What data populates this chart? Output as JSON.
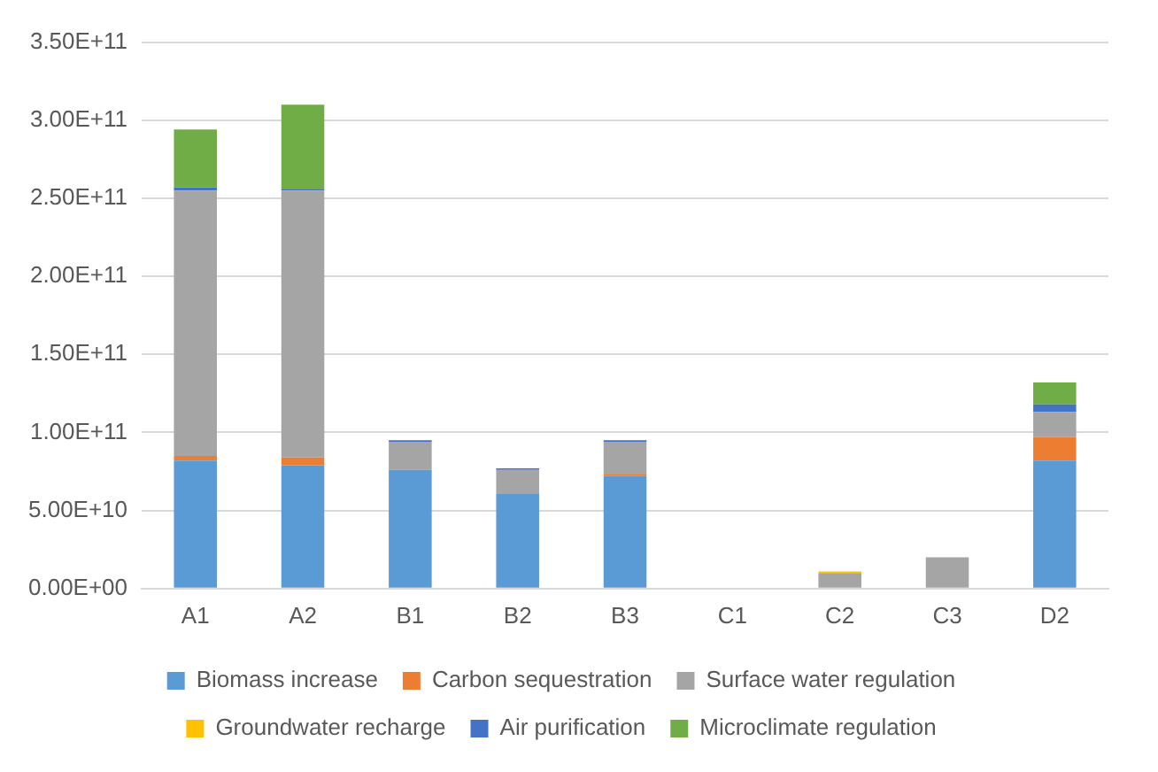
{
  "chart_data": {
    "type": "bar",
    "stacked": true,
    "categories": [
      "A1",
      "A2",
      "B1",
      "B2",
      "B3",
      "C1",
      "C2",
      "C3",
      "D2"
    ],
    "series": [
      {
        "name": "Biomass increase",
        "color": "#5b9bd5",
        "values": [
          82000000000,
          79000000000,
          76000000000,
          61000000000,
          72000000000,
          0,
          0,
          0,
          82000000000
        ]
      },
      {
        "name": "Carbon sequestration",
        "color": "#ed7d31",
        "values": [
          3000000000,
          5000000000,
          0,
          0,
          1000000000,
          0,
          0,
          0,
          15000000000
        ]
      },
      {
        "name": "Surface water regulation",
        "color": "#a5a5a5",
        "values": [
          170000000000,
          171000000000,
          18000000000,
          15000000000,
          21000000000,
          0,
          10000000000,
          20000000000,
          16000000000
        ]
      },
      {
        "name": "Groundwater recharge",
        "color": "#ffc000",
        "values": [
          0,
          0,
          0,
          0,
          0,
          0,
          1000000000,
          0,
          0
        ]
      },
      {
        "name": "Air purification",
        "color": "#4472c4",
        "values": [
          2000000000,
          1000000000,
          1000000000,
          1000000000,
          1000000000,
          0,
          0,
          0,
          5000000000
        ]
      },
      {
        "name": "Microclimate regulation",
        "color": "#70ad47",
        "values": [
          37000000000,
          54000000000,
          0,
          0,
          0,
          0,
          0,
          0,
          14000000000
        ]
      }
    ],
    "ylim": [
      0,
      350000000000
    ],
    "yticks": [
      {
        "value": 0,
        "label": "0.00E+00"
      },
      {
        "value": 50000000000,
        "label": "5.00E+10"
      },
      {
        "value": 100000000000,
        "label": "1.00E+11"
      },
      {
        "value": 150000000000,
        "label": "1.50E+11"
      },
      {
        "value": 200000000000,
        "label": "2.00E+11"
      },
      {
        "value": 250000000000,
        "label": "2.50E+11"
      },
      {
        "value": 300000000000,
        "label": "3.00E+11"
      },
      {
        "value": 350000000000,
        "label": "3.50E+11"
      }
    ],
    "grid": "y",
    "legend": "bottom"
  }
}
